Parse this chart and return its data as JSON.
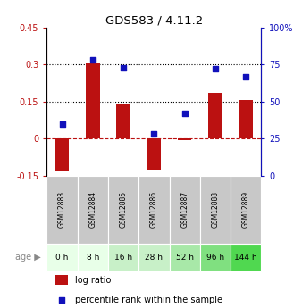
{
  "title": "GDS583 / 4.11.2",
  "samples": [
    "GSM12883",
    "GSM12884",
    "GSM12885",
    "GSM12886",
    "GSM12887",
    "GSM12888",
    "GSM12889"
  ],
  "ages": [
    "0 h",
    "8 h",
    "16 h",
    "28 h",
    "52 h",
    "96 h",
    "144 h"
  ],
  "age_colors": [
    "#e8ffe8",
    "#e8ffe8",
    "#c8f0c8",
    "#c8f0c8",
    "#a8e8a8",
    "#80e080",
    "#50d850"
  ],
  "log_ratios": [
    -0.13,
    0.305,
    0.14,
    -0.125,
    -0.005,
    0.185,
    0.155
  ],
  "percentile_ranks": [
    35,
    78,
    73,
    28,
    42,
    72,
    67
  ],
  "bar_color": "#bb1111",
  "dot_color": "#1111bb",
  "ylim_left": [
    -0.15,
    0.45
  ],
  "ylim_right": [
    0,
    100
  ],
  "yticks_left": [
    -0.15,
    0.0,
    0.15,
    0.3,
    0.45
  ],
  "yticks_right": [
    0,
    25,
    50,
    75,
    100
  ],
  "ytick_labels_left": [
    "-0.15",
    "0",
    "0.15",
    "0.3",
    "0.45"
  ],
  "ytick_labels_right": [
    "0",
    "25",
    "50",
    "75",
    "100%"
  ],
  "hlines": [
    0.15,
    0.3
  ],
  "zero_line": 0.0,
  "legend_labels": [
    "log ratio",
    "percentile rank within the sample"
  ],
  "age_label": "age",
  "sample_box_color": "#c8c8c8",
  "bar_width": 0.45
}
